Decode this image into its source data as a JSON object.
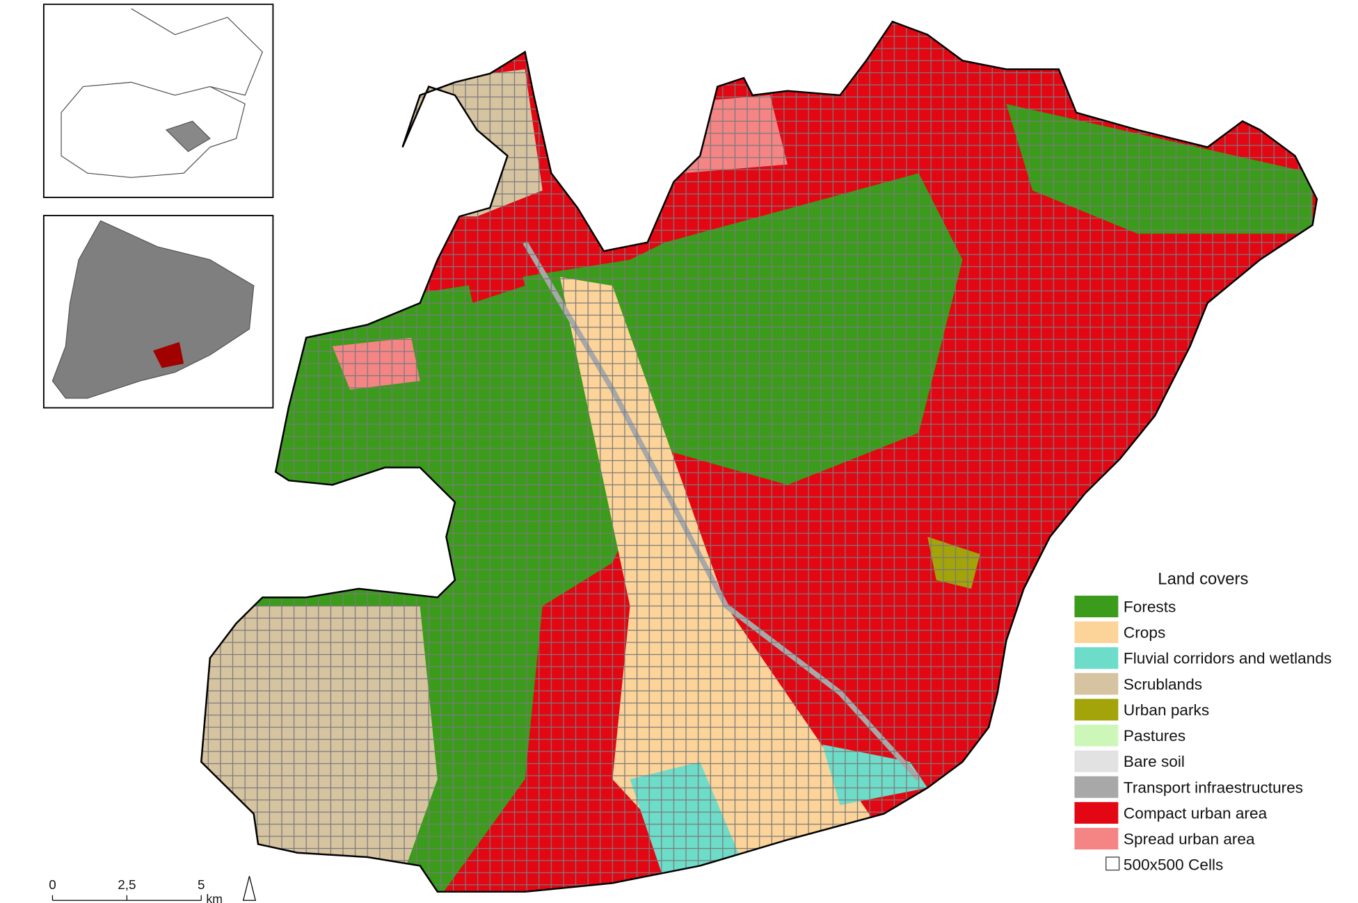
{
  "legend": {
    "title": "Land covers",
    "items": [
      {
        "label": "Forests",
        "color": "#3a9c1a"
      },
      {
        "label": "Crops",
        "color": "#fcd398"
      },
      {
        "label": "Fluvial corridors and wetlands",
        "color": "#6ddcc8"
      },
      {
        "label": "Scrublands",
        "color": "#d6c3a0"
      },
      {
        "label": "Urban parks",
        "color": "#a3a30a"
      },
      {
        "label": "Pastures",
        "color": "#cdf7b8"
      },
      {
        "label": "Bare soil",
        "color": "#e2e2e2"
      },
      {
        "label": "Transport infraestructures",
        "color": "#a8a8a8"
      },
      {
        "label": "Compact urban area",
        "color": "#e30613"
      },
      {
        "label": "Spread urban area",
        "color": "#f58484"
      }
    ],
    "cells_label": "500x500 Cells"
  },
  "scale_bar": {
    "labels": [
      "0",
      "2,5",
      "5"
    ],
    "unit": "km"
  }
}
